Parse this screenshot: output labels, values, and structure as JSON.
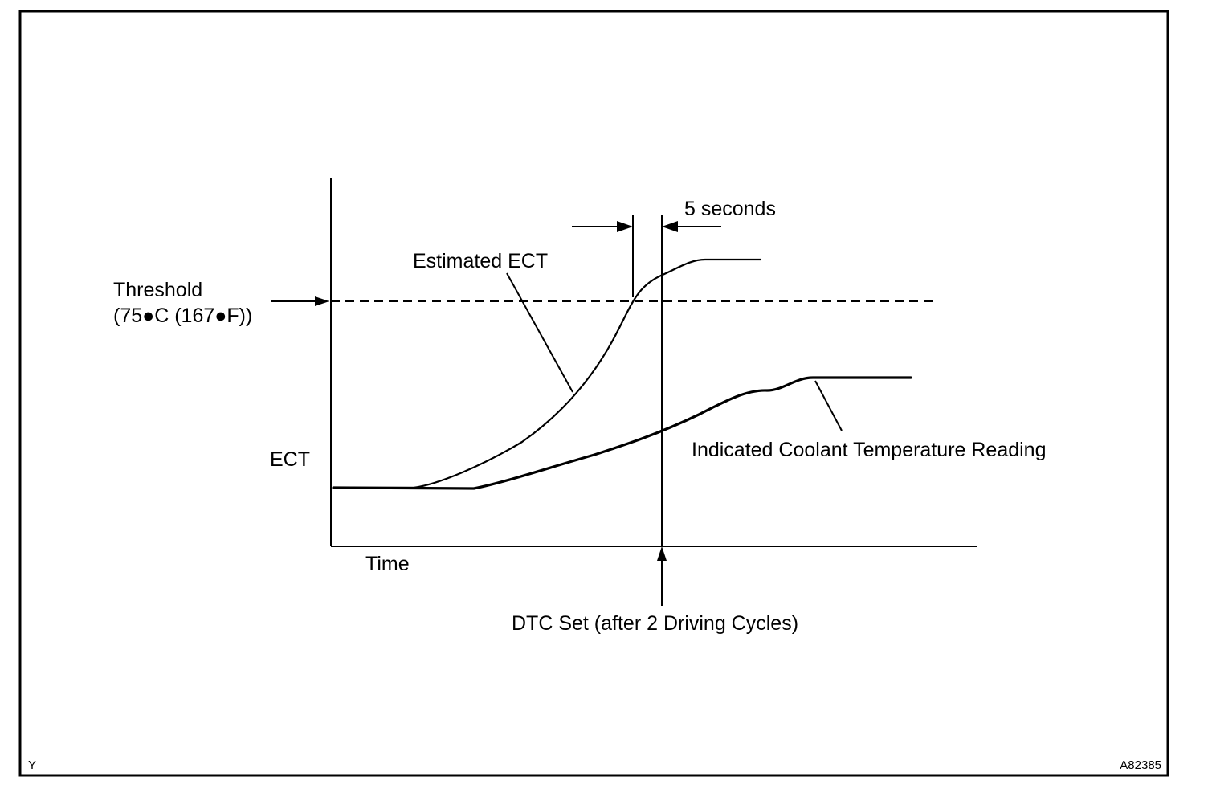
{
  "labels": {
    "five_seconds": "5 seconds",
    "estimated_ect": "Estimated ECT",
    "threshold": "Threshold",
    "threshold_value": "(75●C (167●F))",
    "ect_axis": "ECT",
    "indicated_reading": "Indicated Coolant Temperature Reading",
    "time_axis": "Time",
    "dtc_set": "DTC Set (after 2 Driving Cycles)"
  },
  "corner": {
    "left_code": "Y",
    "figure_id": "A82385"
  }
}
